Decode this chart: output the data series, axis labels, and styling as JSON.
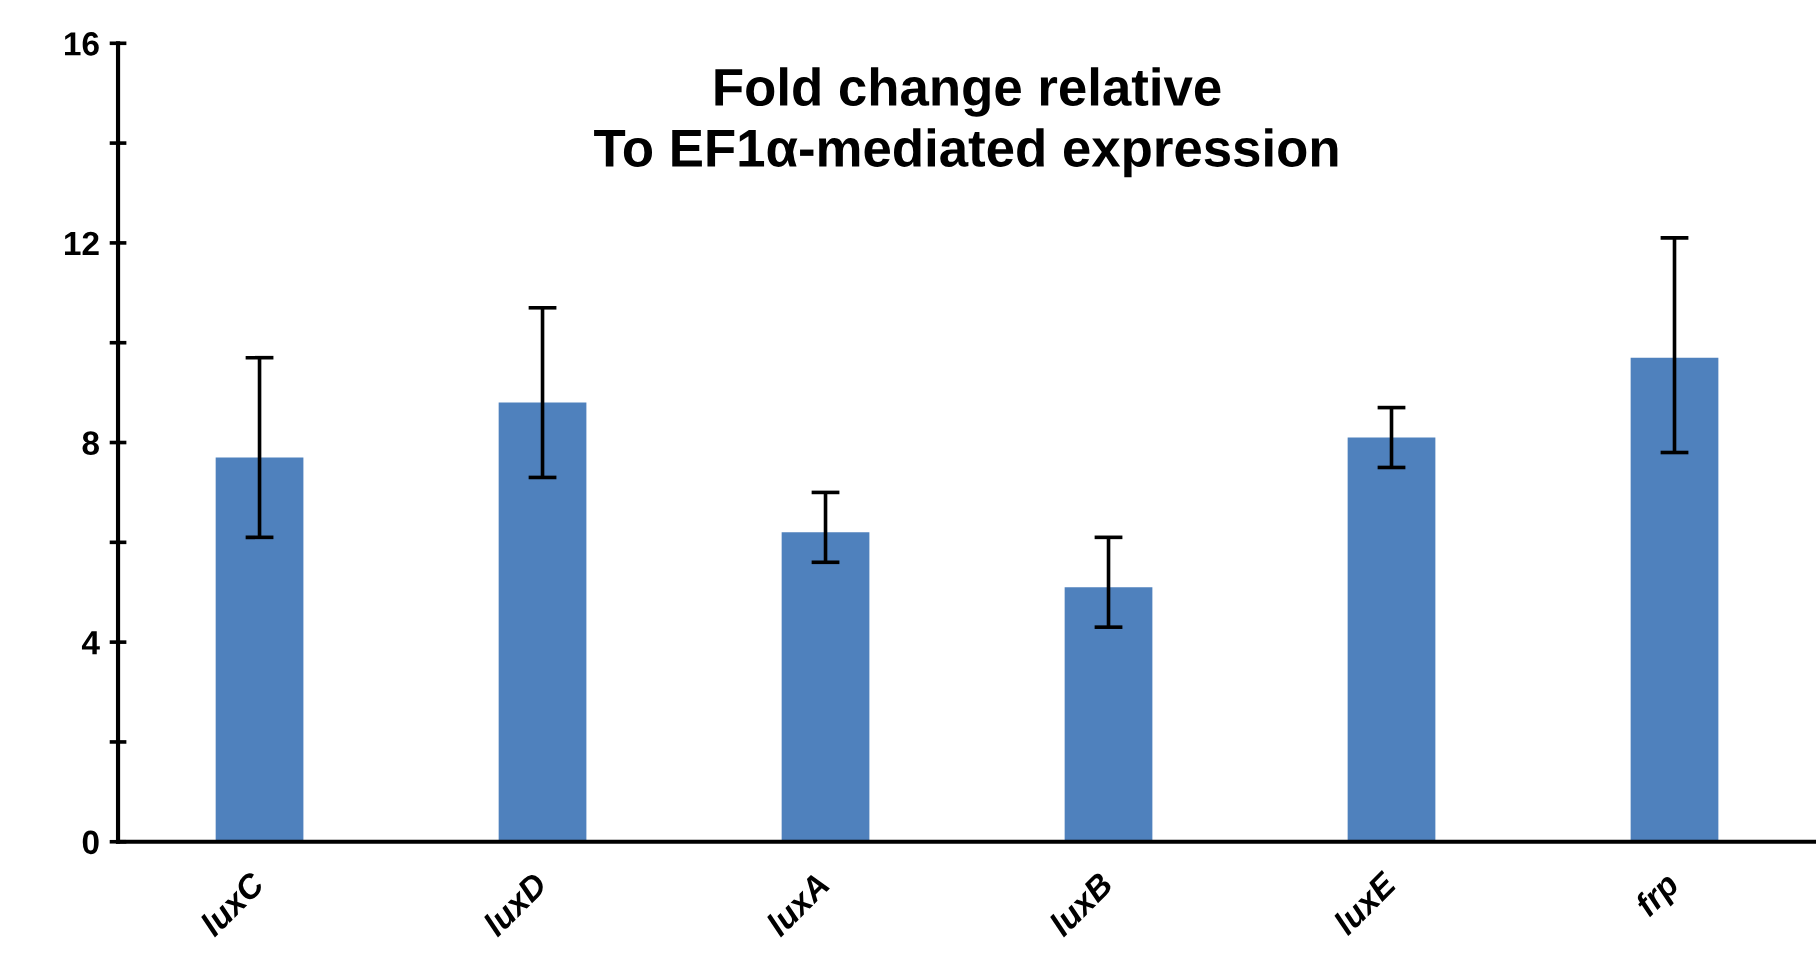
{
  "chart_data": {
    "type": "bar",
    "title": "Fold change relative\nTo EF1α-mediated expression",
    "categories": [
      "luxC",
      "luxD",
      "luxA",
      "luxB",
      "luxE",
      "frp"
    ],
    "values": [
      7.7,
      8.8,
      6.2,
      5.1,
      8.1,
      9.7
    ],
    "errors": [
      [
        6.1,
        9.7
      ],
      [
        7.3,
        10.7
      ],
      [
        5.6,
        7.0
      ],
      [
        4.3,
        6.1
      ],
      [
        7.5,
        8.7
      ],
      [
        7.8,
        12.1
      ]
    ],
    "color": "#4f81bd",
    "ylim": [
      0,
      16
    ],
    "yticks": [
      0,
      {
        "value": 2,
        "label": null
      },
      4,
      {
        "value": 6,
        "label": null
      },
      8,
      {
        "value": 10,
        "label": null
      },
      12,
      {
        "value": 14,
        "label": null
      },
      16
    ],
    "grid": false
  }
}
